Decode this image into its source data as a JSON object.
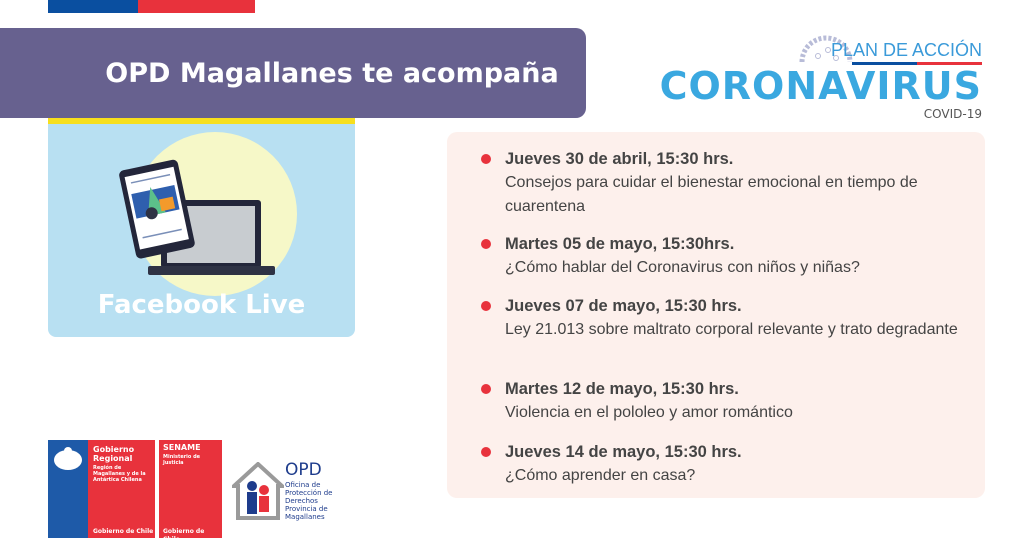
{
  "header": {
    "title": "OPD Magallanes te acompaña"
  },
  "card": {
    "label": "Facebook Live"
  },
  "campaign_logo": {
    "plan": "PLAN DE ACCIÓN",
    "main": "CORONAVIRUS",
    "sub": "COVID-19"
  },
  "events": [
    {
      "date": "Jueves 30 de abril, 15:30 hrs.",
      "topic": "Consejos para cuidar el bienestar emocional en tiempo de cuarentena"
    },
    {
      "date": "Martes 05 de mayo, 15:30hrs.",
      "topic": "¿Cómo hablar del Coronavirus con niños y niñas?"
    },
    {
      "date": "Jueves 07 de mayo, 15:30 hrs.",
      "topic": "Ley 21.013 sobre maltrato corporal relevante y trato degradante"
    },
    {
      "date": "Martes 12 de mayo, 15:30 hrs.",
      "topic": "Violencia en el pololeo y amor romántico"
    },
    {
      "date": "Jueves 14 de mayo, 15:30 hrs.",
      "topic": "¿Cómo aprender en casa?"
    }
  ],
  "logos": {
    "gore": {
      "title": "Gobierno Regional",
      "region": "Región de Magallanes y de la Antártica Chilena",
      "footer": "Gobierno de Chile"
    },
    "sename": {
      "title": "SENAME",
      "ministry": "Ministerio de Justicia",
      "footer": "Gobierno de Chile"
    },
    "opd": {
      "title": "OPD",
      "subtitle": "Oficina de Protección de Derechos Provincia de Magallanes"
    }
  },
  "colors": {
    "banner": "#67618f",
    "accent_red": "#e8323c",
    "card_blue": "#b8e0f2",
    "list_bg": "#fdf0ec"
  }
}
